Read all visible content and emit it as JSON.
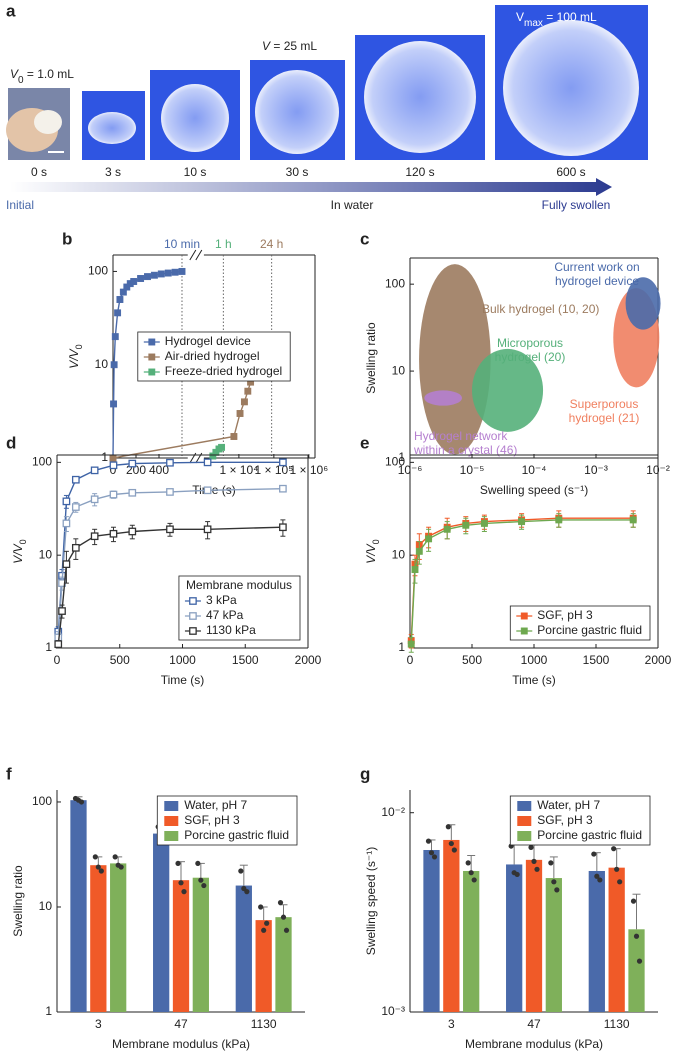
{
  "panel_labels": [
    "a",
    "b",
    "c",
    "d",
    "e",
    "f",
    "g"
  ],
  "panel_a": {
    "volume_labels": [
      {
        "var": "V",
        "sub": "0",
        "text": " = 1.0 mL"
      },
      {
        "var": "V",
        "text": " = 25 mL"
      },
      {
        "var": "V",
        "sub": "max",
        "text": " = 100 mL"
      }
    ],
    "times": [
      "0 s",
      "3 s",
      "10 s",
      "30 s",
      "120 s",
      "600 s"
    ],
    "stages": [
      "Initial",
      "In water",
      "Fully swollen"
    ]
  },
  "chart_data": [
    {
      "type": "line",
      "frame": true,
      "markers": "filled",
      "legend": "center",
      "x_segments": [
        {
          "xlim": [
            0,
            650
          ],
          "xticks": [
            0,
            200,
            400
          ]
        },
        {
          "xlim": [
            1000,
            1500000
          ],
          "xscale": "log",
          "xticks": [
            {
              "value": 10000,
              "label": "1 × 10⁴"
            },
            {
              "value": 100000,
              "label": "1 × 10⁵"
            },
            {
              "value": 1000000,
              "label": "1 × 10⁶"
            }
          ]
        }
      ],
      "ylim": [
        1,
        150
      ],
      "yscale": "log",
      "yticks": [
        1,
        10,
        100
      ],
      "xlabel": "Time (s)",
      "ylabel": {
        "var": "V/V",
        "sub": "0"
      },
      "time_markers": [
        {
          "x": 600,
          "label": "10 min",
          "color": "#4a6aaa"
        },
        {
          "x": 3600,
          "label": "1 h",
          "color": "#55b07a"
        },
        {
          "x": 86400,
          "label": "24 h",
          "color": "#9c7b5f"
        }
      ],
      "series": [
        {
          "name": "Hydrogel device",
          "color": "#4a6aaa",
          "x": [
            0,
            5,
            10,
            20,
            40,
            60,
            90,
            120,
            150,
            180,
            240,
            300,
            360,
            420,
            480,
            540,
            600
          ],
          "values": [
            1,
            3.8,
            10,
            20,
            36,
            50,
            60,
            68,
            74,
            78,
            84,
            88,
            91,
            94,
            96,
            98,
            100
          ]
        },
        {
          "name": "Air-dried hydrogel",
          "color": "#9c7b5f",
          "x": [
            0,
            7200,
            10800,
            14400,
            18000,
            21600,
            28800,
            36000,
            43200,
            50400,
            57600,
            64800,
            72000,
            79200,
            86400
          ],
          "values": [
            1,
            1.7,
            3,
            4,
            5.2,
            6.5,
            8,
            9.5,
            11,
            12.5,
            14,
            15,
            16,
            16,
            16.5
          ]
        },
        {
          "name": "Freeze-dried hydrogel",
          "color": "#55b07a",
          "x": [
            1800,
            2200,
            2700,
            3200
          ],
          "values": [
            1.05,
            1.15,
            1.25,
            1.3
          ]
        }
      ]
    },
    {
      "type": "region",
      "frame": true,
      "xlim": [
        1e-06,
        0.01
      ],
      "xscale": "log",
      "xticks": [
        {
          "value": 1e-06,
          "label": "10⁻⁶"
        },
        {
          "value": 1e-05,
          "label": "10⁻⁵"
        },
        {
          "value": 0.0001,
          "label": "10⁻⁴"
        },
        {
          "value": 0.001,
          "label": "10⁻³"
        },
        {
          "value": 0.01,
          "label": "10⁻²"
        }
      ],
      "ylim": [
        1,
        200
      ],
      "yscale": "log",
      "yticks": [
        1,
        10,
        100
      ],
      "xlabel": "Swelling speed (s⁻¹)",
      "ylabel": "Swelling ratio",
      "regions": [
        {
          "label": [
            "Bulk hydrogel (10, 20)"
          ],
          "color": "#9c7b5f",
          "x": [
            1.4e-06,
            2e-05
          ],
          "y": [
            1.1,
            170
          ]
        },
        {
          "label": [
            "Hydrogel network",
            "within a crystal (46)"
          ],
          "color": "#b57fcf",
          "x": [
            1.7e-06,
            6.9e-06
          ],
          "y": [
            4,
            6
          ]
        },
        {
          "label": [
            "Microporous",
            "hydrogel (20)"
          ],
          "color": "#55b07a",
          "x": [
            1e-05,
            0.00014
          ],
          "y": [
            2,
            18
          ]
        },
        {
          "label": [
            "Superporous",
            "hydrogel (21)"
          ],
          "color": "#f08060",
          "x": [
            0.0019,
            0.0105
          ],
          "y": [
            6.5,
            90
          ]
        },
        {
          "label": [
            "Current work on",
            "hydrogel device"
          ],
          "color": "#4a6aaa",
          "x": [
            0.003,
            0.011
          ],
          "y": [
            30,
            120
          ]
        }
      ]
    },
    {
      "type": "line",
      "frame": true,
      "markers": "open",
      "legend": "lower right",
      "legend_title": "Membrane modulus",
      "xlim": [
        0,
        2000
      ],
      "xticks": [
        0,
        500,
        1000,
        1500,
        2000
      ],
      "ylim": [
        1,
        120
      ],
      "yscale": "log",
      "yticks": [
        1,
        10,
        100
      ],
      "xlabel": "Time (s)",
      "ylabel": {
        "var": "V/V",
        "sub": "0"
      },
      "series": [
        {
          "name": "3 kPa",
          "color": "#3e63a6",
          "x": [
            10,
            40,
            75,
            150,
            300,
            450,
            600,
            900,
            1200,
            1800
          ],
          "values": [
            1.5,
            6,
            38,
            65,
            82,
            93,
            97,
            99,
            100,
            100
          ],
          "errors": [
            0.2,
            1,
            6,
            5,
            6,
            5,
            4,
            4,
            3,
            3
          ]
        },
        {
          "name": "47 kPa",
          "color": "#8aa0c0",
          "x": [
            10,
            40,
            75,
            150,
            300,
            450,
            600,
            900,
            1200,
            1800
          ],
          "values": [
            1.3,
            5,
            22,
            33,
            40,
            45,
            47,
            48,
            50,
            52
          ],
          "errors": [
            0.2,
            0.8,
            4,
            4,
            6,
            4,
            3,
            3,
            3,
            3
          ]
        },
        {
          "name": "1130 kPa",
          "color": "#333333",
          "x": [
            10,
            40,
            75,
            150,
            300,
            450,
            600,
            900,
            1200,
            1800
          ],
          "values": [
            1.1,
            2.5,
            8,
            12,
            16,
            17,
            18,
            19,
            19,
            20
          ],
          "errors": [
            0.1,
            0.4,
            3,
            3,
            3,
            3,
            3,
            3,
            4,
            4
          ]
        }
      ]
    },
    {
      "type": "line",
      "frame": true,
      "markers": "filled",
      "legend": "lower right",
      "xlim": [
        0,
        2000
      ],
      "xticks": [
        0,
        500,
        1000,
        1500,
        2000
      ],
      "ylim": [
        1,
        120
      ],
      "yscale": "log",
      "yticks": [
        1,
        10,
        100
      ],
      "xlabel": "Time (s)",
      "ylabel": {
        "var": "V/V",
        "sub": "0"
      },
      "series": [
        {
          "name": "SGF, pH 3",
          "color": "#f05a28",
          "x": [
            10,
            40,
            75,
            150,
            300,
            450,
            600,
            900,
            1200,
            1800
          ],
          "values": [
            1.2,
            8,
            13,
            16,
            20,
            22,
            23,
            24,
            25,
            25
          ],
          "errors": [
            0.2,
            2,
            4,
            4,
            5,
            4,
            4,
            4,
            5,
            5
          ]
        },
        {
          "name": "Porcine gastric fluid",
          "color": "#6ea84f",
          "x": [
            10,
            40,
            75,
            150,
            300,
            450,
            600,
            900,
            1200,
            1800
          ],
          "values": [
            1.1,
            7,
            11,
            15,
            19,
            21,
            22,
            23,
            24,
            24
          ],
          "errors": [
            0.2,
            2,
            3,
            4,
            4,
            4,
            4,
            4,
            4,
            4
          ]
        }
      ]
    },
    {
      "type": "bar",
      "frame": false,
      "legend": "upper right",
      "categories": [
        "3",
        "47",
        "1130"
      ],
      "ylim": [
        1,
        130
      ],
      "yscale": "log",
      "yticks": [
        1,
        10,
        100
      ],
      "xlabel": "Membrane modulus (kPa)",
      "ylabel": "Swelling ratio",
      "series": [
        {
          "name": "Water, pH 7",
          "color": "#4a6aaa",
          "values": [
            104,
            50,
            16
          ],
          "errors": [
            8,
            12,
            9
          ],
          "points": [
            [
              108,
              104,
              100
            ],
            [
              58,
              47,
              45
            ],
            [
              22,
              15,
              14
            ]
          ]
        },
        {
          "name": "SGF, pH 3",
          "color": "#f05a28",
          "values": [
            25,
            18,
            7.5
          ],
          "errors": [
            5,
            9,
            2.5
          ],
          "points": [
            [
              30,
              24,
              22
            ],
            [
              26,
              17,
              14
            ],
            [
              10,
              6,
              7
            ]
          ]
        },
        {
          "name": "Porcine gastric fluid",
          "color": "#7fb05a",
          "values": [
            26,
            19,
            8
          ],
          "errors": [
            4,
            7,
            2.5
          ],
          "points": [
            [
              30,
              25,
              24
            ],
            [
              26,
              18,
              16
            ],
            [
              11,
              8,
              6
            ]
          ]
        }
      ]
    },
    {
      "type": "bar",
      "frame": false,
      "legend": "upper right",
      "categories": [
        "3",
        "47",
        "1130"
      ],
      "ylim": [
        0.001,
        0.013
      ],
      "yscale": "log",
      "yticks": [
        {
          "value": 0.001,
          "label": "10⁻³"
        },
        {
          "value": 0.01,
          "label": "10⁻²"
        }
      ],
      "xlabel": "Membrane modulus (kPa)",
      "ylabel": "Swelling speed (s⁻¹)",
      "series": [
        {
          "name": "Water, pH 7",
          "color": "#4a6aaa",
          "values": [
            0.0065,
            0.0055,
            0.0051
          ],
          "errors": [
            0.0008,
            0.0015,
            0.0012
          ],
          "points": [
            [
              0.0072,
              0.0063,
              0.006
            ],
            [
              0.0068,
              0.005,
              0.0049
            ],
            [
              0.0062,
              0.0048,
              0.0046
            ]
          ]
        },
        {
          "name": "SGF, pH 3",
          "color": "#f05a28",
          "values": [
            0.0073,
            0.0058,
            0.0053
          ],
          "errors": [
            0.0014,
            0.0011,
            0.0013
          ],
          "points": [
            [
              0.0085,
              0.007,
              0.0065
            ],
            [
              0.0067,
              0.0057,
              0.0052
            ],
            [
              0.0066,
              0.0052,
              0.0045
            ]
          ]
        },
        {
          "name": "Porcine gastric fluid",
          "color": "#7fb05a",
          "values": [
            0.0051,
            0.0047,
            0.0026
          ],
          "errors": [
            0.001,
            0.0013,
            0.0013
          ],
          "points": [
            [
              0.0056,
              0.005,
              0.0046
            ],
            [
              0.0056,
              0.0045,
              0.0041
            ],
            [
              0.0036,
              0.0024,
              0.0018
            ]
          ]
        }
      ]
    }
  ]
}
